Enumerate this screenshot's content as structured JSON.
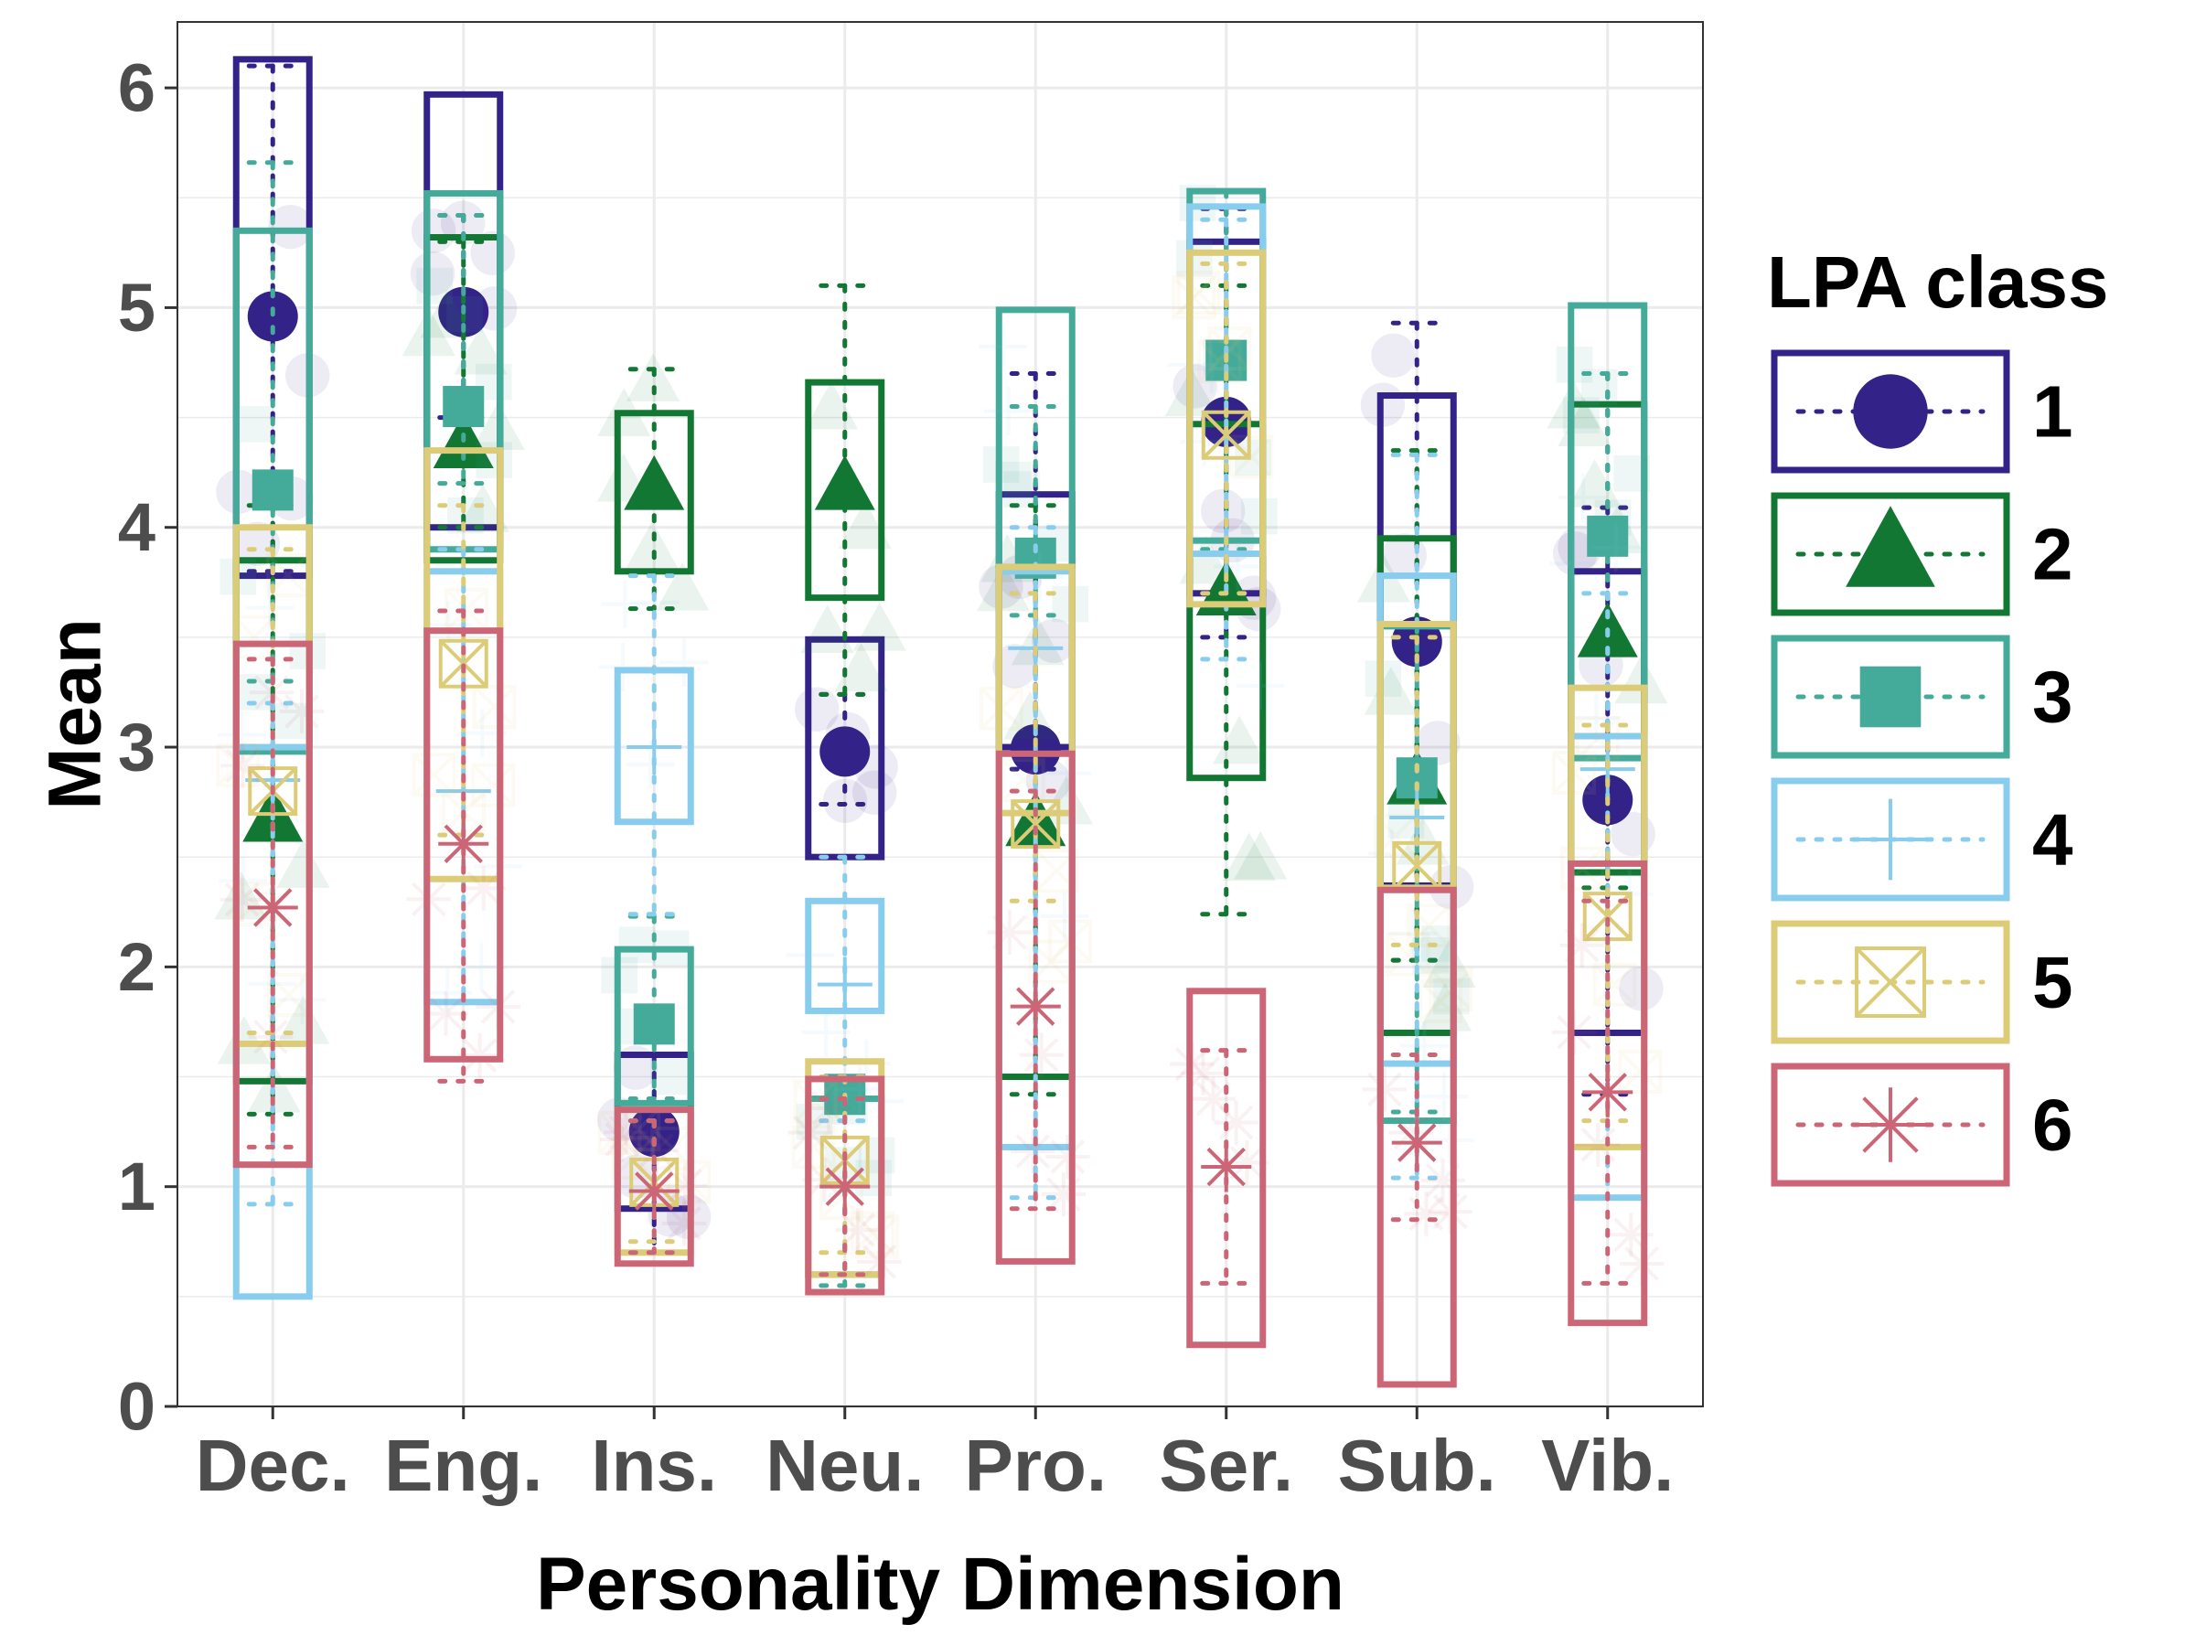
{
  "chart_data": {
    "type": "box-range",
    "title": "",
    "xlabel": "Personality Dimension",
    "ylabel": "Mean",
    "ylim": [
      0,
      6.3
    ],
    "yticks": [
      0,
      1,
      2,
      3,
      4,
      5,
      6
    ],
    "grid": true,
    "legend": {
      "title": "LPA class",
      "placement": "right"
    },
    "categories": [
      "Dec.",
      "Eng.",
      "Ins.",
      "Neu.",
      "Pro.",
      "Ser.",
      "Sub.",
      "Vib."
    ],
    "series": [
      {
        "name": "1",
        "color": "#332288",
        "marker": "circle",
        "mean": [
          4.96,
          4.98,
          1.25,
          2.98,
          2.99,
          4.48,
          3.48,
          2.76
        ],
        "box_low": [
          3.78,
          4.0,
          0.9,
          2.5,
          3.0,
          3.7,
          2.37,
          1.7
        ],
        "box_high": [
          6.13,
          5.97,
          1.6,
          3.49,
          4.15,
          5.3,
          4.6,
          3.8
        ],
        "err_low": [
          3.8,
          4.5,
          0.7,
          2.74,
          2.9,
          3.5,
          2.03,
          1.42
        ],
        "err_high": [
          6.1,
          5.42,
          1.6,
          3.24,
          4.7,
          5.45,
          4.93,
          4.09
        ]
      },
      {
        "name": "2",
        "color": "#117733",
        "marker": "triangle",
        "mean": [
          2.67,
          4.37,
          4.18,
          4.18,
          2.65,
          3.7,
          2.84,
          3.51
        ],
        "box_low": [
          1.48,
          3.85,
          3.8,
          3.68,
          1.5,
          2.86,
          1.7,
          2.43
        ],
        "box_high": [
          3.85,
          5.32,
          4.52,
          4.66,
          3.82,
          4.47,
          3.95,
          4.56
        ],
        "err_low": [
          1.33,
          4.0,
          3.63,
          3.24,
          1.42,
          2.24,
          2.03,
          2.36
        ],
        "err_high": [
          4.1,
          5.3,
          4.72,
          5.1,
          4.1,
          5.1,
          4.35,
          4.7
        ]
      },
      {
        "name": "3",
        "color": "#44AA99",
        "marker": "square",
        "mean": [
          4.17,
          4.55,
          1.74,
          1.42,
          3.86,
          4.76,
          2.86,
          3.96
        ],
        "box_low": [
          2.98,
          3.9,
          1.38,
          0.6,
          3.82,
          3.94,
          1.3,
          2.95
        ],
        "box_high": [
          5.35,
          5.52,
          2.08,
          1.4,
          4.99,
          5.53,
          3.55,
          5.01
        ],
        "err_low": [
          3.3,
          4.2,
          1.4,
          0.55,
          3.6,
          3.9,
          1.34,
          2.95
        ],
        "err_high": [
          5.66,
          5.42,
          2.23,
          1.4,
          4.55,
          5.53,
          3.55,
          4.7
        ]
      },
      {
        "name": "4",
        "color": "#88CCEE",
        "marker": "cross",
        "mean": [
          2.85,
          2.8,
          3.0,
          1.92,
          3.45,
          3.88,
          2.68,
          2.9
        ],
        "box_low": [
          0.5,
          1.84,
          2.66,
          1.8,
          1.18,
          3.88,
          1.56,
          0.95
        ],
        "box_high": [
          3.0,
          3.8,
          3.35,
          2.3,
          3.8,
          5.46,
          3.78,
          3.05
        ],
        "err_low": [
          0.92,
          1.84,
          2.24,
          1.3,
          0.95,
          3.4,
          1.04,
          0.95
        ],
        "err_high": [
          3.2,
          3.9,
          3.78,
          2.5,
          4.0,
          5.4,
          4.33,
          3.7
        ]
      },
      {
        "name": "5",
        "color": "#DDCC77",
        "marker": "boxx",
        "mean": [
          2.8,
          3.38,
          1.02,
          1.12,
          2.65,
          4.42,
          2.46,
          2.23
        ],
        "box_low": [
          1.65,
          2.4,
          0.7,
          0.6,
          2.7,
          3.65,
          2.36,
          1.18
        ],
        "box_high": [
          4.0,
          4.35,
          1.35,
          1.57,
          3.82,
          5.25,
          3.56,
          3.27
        ],
        "err_low": [
          1.7,
          2.6,
          0.75,
          0.7,
          2.3,
          3.7,
          2.1,
          1.3
        ],
        "err_high": [
          3.9,
          4.1,
          1.3,
          1.5,
          3.7,
          5.2,
          3.5,
          3.1
        ]
      },
      {
        "name": "6",
        "color": "#CC6677",
        "marker": "asterisk",
        "mean": [
          2.27,
          2.56,
          0.98,
          1.0,
          1.82,
          1.09,
          1.2,
          1.43
        ],
        "box_low": [
          1.1,
          1.58,
          0.65,
          0.52,
          0.66,
          0.28,
          0.1,
          0.38
        ],
        "box_high": [
          3.47,
          3.53,
          1.35,
          1.49,
          2.97,
          1.89,
          2.35,
          2.47
        ],
        "err_low": [
          1.18,
          1.48,
          0.7,
          0.6,
          0.9,
          0.56,
          0.85,
          0.56
        ],
        "err_high": [
          3.4,
          3.62,
          1.3,
          1.4,
          2.8,
          1.62,
          1.6,
          2.3
        ]
      }
    ]
  }
}
